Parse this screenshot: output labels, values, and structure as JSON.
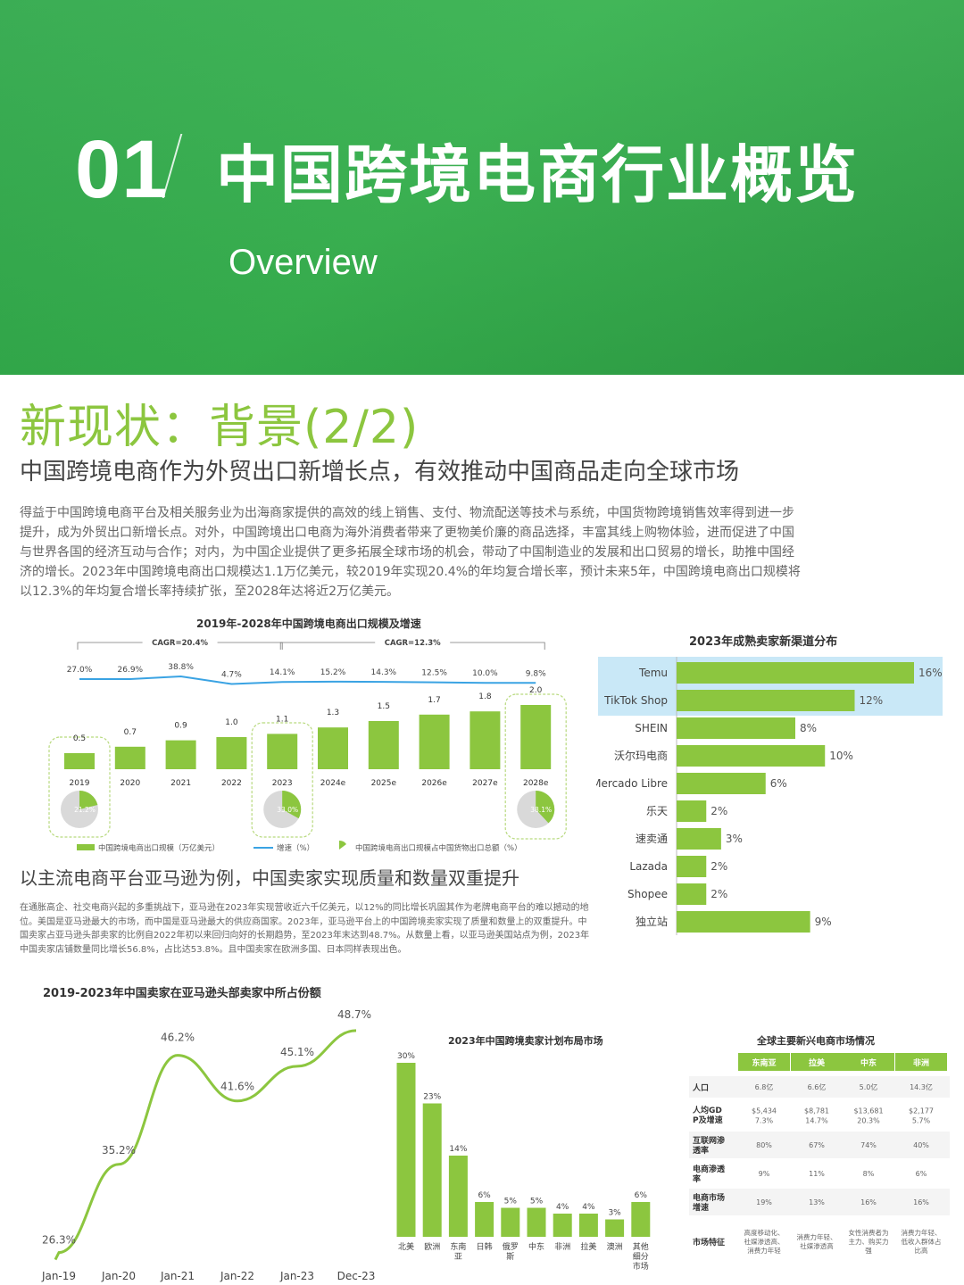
{
  "banner": {
    "number": "01",
    "title": "中国跨境电商行业概览",
    "subtitle": "Overview"
  },
  "heading": "新现状：背景(2/2)",
  "subheading": "中国跨境电商作为外贸出口新增长点，有效推动中国商品走向全球市场",
  "paragraph": "得益于中国跨境电商平台及相关服务业为出海商家提供的高效的线上销售、支付、物流配送等技术与系统，中国货物跨境销售效率得到进一步提升，成为外贸出口新增长点。对外，中国跨境出口电商为海外消费者带来了更物美价廉的商品选择，丰富其线上购物体验，进而促进了中国与世界各国的经济互动与合作；对内，为中国企业提供了更多拓展全球市场的机会，带动了中国制造业的发展和出口贸易的增长，助推中国经济的增长。2023年中国跨境电商出口规模达1.1万亿美元，较2019年实现20.4%的年均复合增长率，预计未来5年，中国跨境电商出口规模将以12.3%的年均复合增长率持续扩张，至2028年达将近2万亿美元。",
  "subheading2": "以主流电商平台亚马逊为例，中国卖家实现质量和数量双重提升",
  "paragraph2": "在通胀高企、社交电商兴起的多重挑战下，亚马逊在2023年实现营收近六千亿美元，以12%的同比增长巩固其作为老牌电商平台的难以撼动的地位。美国是亚马逊最大的市场，而中国是亚马逊最大的供应商国家。2023年，亚马逊平台上的中国跨境卖家实现了质量和数量上的双重提升。中国卖家占亚马逊头部卖家的比例自2022年初以来回归向好的长期趋势，至2023年末达到48.7%。从数量上看，以亚马逊美国站点为例，2023年中国卖家店铺数量同比增长56.8%，占比达53.8%。且中国卖家在欧洲多国、日本同样表现出色。",
  "colors": {
    "green": "#8cc63f",
    "blue": "#3aa3e3",
    "highlight": "#c9e8f7"
  },
  "chart_data": [
    {
      "type": "bar",
      "title": "2019年-2028年中国跨境电商出口规模及增速",
      "categories": [
        "2019",
        "2020",
        "2021",
        "2022",
        "2023",
        "2024e",
        "2025e",
        "2026e",
        "2027e",
        "2028e"
      ],
      "series": [
        {
          "name": "中国跨境电商出口规模（万亿美元）",
          "values": [
            0.5,
            0.7,
            0.9,
            1.0,
            1.1,
            1.3,
            1.5,
            1.7,
            1.8,
            2.0
          ],
          "labels": [
            "0.5",
            "0.7",
            "0.9",
            "1.0",
            "1.1",
            "1.3",
            "1.5",
            "1.7",
            "1.8",
            "2.0"
          ]
        },
        {
          "name": "增速（%）",
          "values": [
            27.0,
            26.9,
            38.8,
            4.7,
            14.1,
            15.2,
            14.3,
            12.5,
            10.0,
            9.8
          ],
          "labels": [
            "27.0%",
            "26.9%",
            "38.8%",
            "4.7%",
            "14.1%",
            "15.2%",
            "14.3%",
            "12.5%",
            "10.0%",
            "9.8%"
          ]
        }
      ],
      "pie_legend": "中国跨境电商出口规模占中国货物出口总额（%）",
      "pies": [
        {
          "category": "2019",
          "value": 21.2,
          "label": "21.2%"
        },
        {
          "category": "2023",
          "value": 33.0,
          "label": "33.0%"
        },
        {
          "category": "2028e",
          "value": 38.1,
          "label": "38.1%"
        }
      ],
      "cagr": [
        {
          "label": "CAGR=20.4%",
          "from": "2019",
          "to": "2023"
        },
        {
          "label": "CAGR=12.3%",
          "from": "2023",
          "to": "2028e"
        }
      ],
      "legend_position": "bottom"
    },
    {
      "type": "bar",
      "orientation": "horizontal",
      "title": "2023年成熟卖家新渠道分布",
      "categories": [
        "Temu",
        "TikTok Shop",
        "SHEIN",
        "沃尔玛电商",
        "Mercado Libre",
        "乐天",
        "速卖通",
        "Lazada",
        "Shopee",
        "独立站"
      ],
      "values": [
        16,
        12,
        8,
        10,
        6,
        2,
        3,
        2,
        2,
        9
      ],
      "labels": [
        "16%",
        "12%",
        "8%",
        "10%",
        "6%",
        "2%",
        "3%",
        "2%",
        "2%",
        "9%"
      ],
      "highlighted": [
        "Temu",
        "TikTok Shop"
      ],
      "xlim": [
        0,
        16
      ]
    },
    {
      "type": "line",
      "title": "2019-2023年中国卖家在亚马逊头部卖家中所占份额",
      "x_ticks": [
        "Jan-19",
        "Jan-20",
        "Jan-21",
        "Jan-22",
        "Jan-23",
        "Dec-23"
      ],
      "points": [
        {
          "x": "Jan-19",
          "y": 26.3,
          "label": "26.3%"
        },
        {
          "x": "Jan-20",
          "y": 35.2,
          "label": "35.2%"
        },
        {
          "x": "Jan-21",
          "y": 46.2,
          "label": "46.2%"
        },
        {
          "x": "Jan-22",
          "y": 41.6,
          "label": "41.6%"
        },
        {
          "x": "Jan-23",
          "y": 45.1,
          "label": "45.1%"
        },
        {
          "x": "Dec-23",
          "y": 48.7,
          "label": "48.7%"
        }
      ],
      "ylim": [
        25,
        50
      ]
    },
    {
      "type": "bar",
      "title": "2023年中国跨境卖家计划布局市场",
      "categories": [
        "北美",
        "欧洲",
        "东南亚",
        "日韩",
        "俄罗斯",
        "中东",
        "非洲",
        "拉美",
        "澳洲",
        "其他细分市场"
      ],
      "values": [
        30,
        23,
        14,
        6,
        5,
        5,
        4,
        4,
        3,
        6
      ],
      "labels": [
        "30%",
        "23%",
        "14%",
        "6%",
        "5%",
        "5%",
        "4%",
        "4%",
        "3%",
        "6%"
      ],
      "ylim": [
        0,
        30
      ]
    },
    {
      "type": "table",
      "title": "全球主要新兴电商市场情况",
      "columns": [
        "东南亚",
        "拉美",
        "中东",
        "非洲"
      ],
      "rows": [
        {
          "label": "人口",
          "cells": [
            "6.8亿",
            "6.6亿",
            "5.0亿",
            "14.3亿"
          ]
        },
        {
          "label": "人均GDP及增速",
          "cells": [
            "$5,434 7.3%",
            "$8,781 14.7%",
            "$13,681 20.3%",
            "$2,177 5.7%"
          ]
        },
        {
          "label": "互联网渗透率",
          "cells": [
            "80%",
            "67%",
            "74%",
            "40%"
          ]
        },
        {
          "label": "电商渗透率",
          "cells": [
            "9%",
            "11%",
            "8%",
            "6%"
          ]
        },
        {
          "label": "电商市场增速",
          "cells": [
            "19%",
            "13%",
            "16%",
            "16%"
          ]
        },
        {
          "label": "市场特征",
          "cells": [
            "高度移动化、社媒渗透高、消费力年轻",
            "消费力年轻、社媒渗透高",
            "女性消费者为主力、购买力强",
            "消费力年轻、低收入群体占比高"
          ]
        }
      ]
    }
  ]
}
